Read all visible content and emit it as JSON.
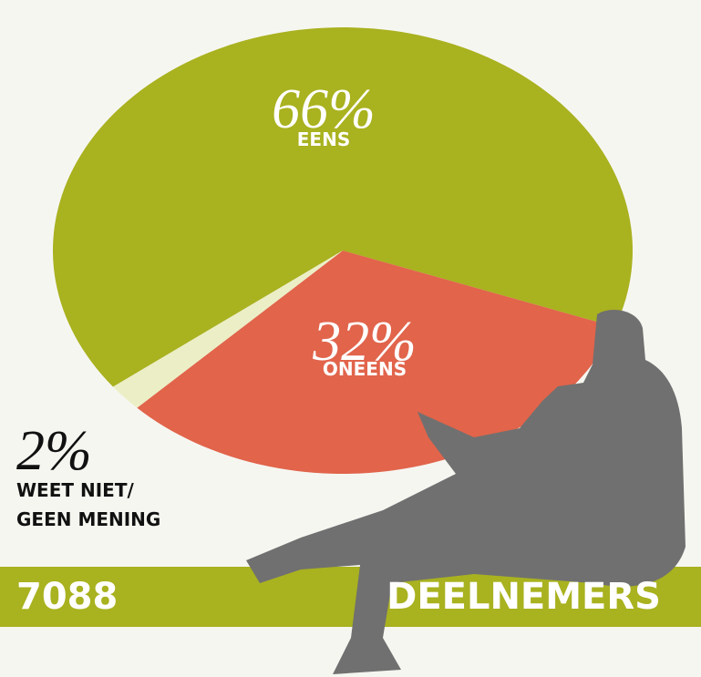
{
  "chart_data": {
    "type": "pie",
    "categories": [
      "EENS",
      "ONEENS",
      "WEET NIET/\nGEEN MENING"
    ],
    "values": [
      66,
      32,
      2
    ],
    "value_labels": [
      "66%",
      "32%",
      "2%"
    ],
    "colors": [
      "#a9b21f",
      "#e1644b",
      "#eceec6"
    ],
    "footer": {
      "count": "7088",
      "label": "DEELNEMERS"
    }
  }
}
